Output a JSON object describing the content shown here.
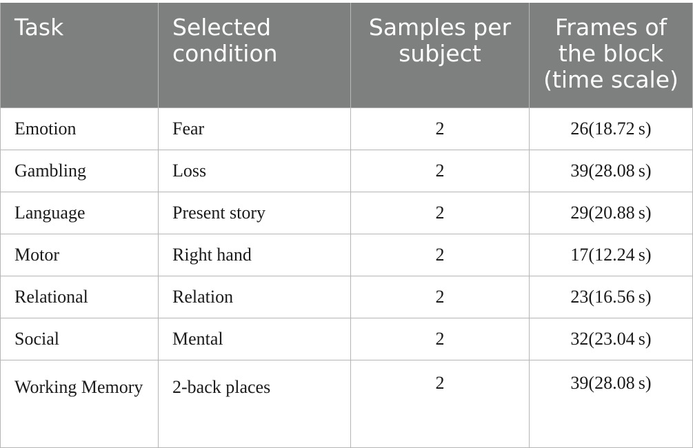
{
  "table": {
    "headers": [
      "Task",
      "Selected\ncondition",
      "Samples per\nsubject",
      "Frames of\nthe block\n(time scale)"
    ],
    "rows": [
      [
        "Emotion",
        "Fear",
        "2",
        "26(18.72 s)"
      ],
      [
        "Gambling",
        "Loss",
        "2",
        "39(28.08 s)"
      ],
      [
        "Language",
        "Present story",
        "2",
        "29(20.88 s)"
      ],
      [
        "Motor",
        "Right hand",
        "2",
        "17(12.24 s)"
      ],
      [
        "Relational",
        "Relation",
        "2",
        "23(16.56 s)"
      ],
      [
        "Social",
        "Mental",
        "2",
        "32(23.04 s)"
      ],
      [
        "Working Memory",
        "2-back places",
        "2",
        "39(28.08 s)"
      ]
    ]
  }
}
